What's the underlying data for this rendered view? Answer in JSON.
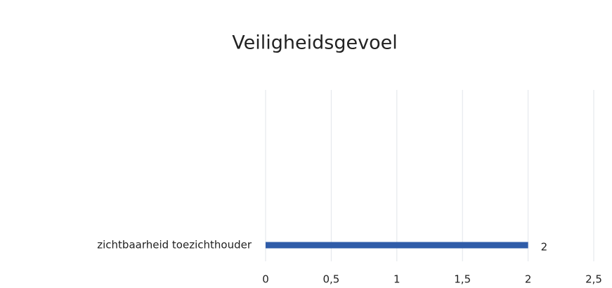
{
  "chart_data": {
    "type": "bar",
    "orientation": "horizontal",
    "title": "Veiligheidsgevoel",
    "categories": [
      "zichtbaarheid toezichthouder"
    ],
    "values": [
      2
    ],
    "color": "#2f5ca8",
    "xlim": [
      0,
      2.5
    ],
    "xticks": [
      0,
      {
        "value": 0.5,
        "label": "0,5"
      },
      1,
      {
        "value": 1.5,
        "label": "1,5"
      },
      2,
      {
        "value": 2.5,
        "label": "2,5"
      }
    ],
    "grid": true
  }
}
